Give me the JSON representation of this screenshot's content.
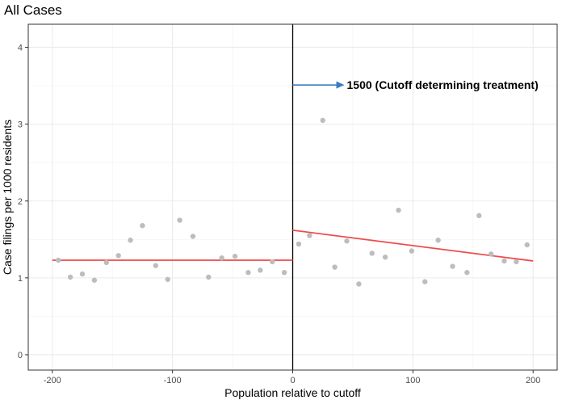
{
  "chart_data": {
    "type": "scatter",
    "title": "All Cases",
    "xlabel": "Population relative to cutoff",
    "ylabel": "Case filings per 1000 residents",
    "xlim": [
      -220,
      220
    ],
    "ylim": [
      -0.2,
      4.3
    ],
    "xticks": [
      -200,
      -100,
      0,
      100,
      200
    ],
    "yticks": [
      0,
      1,
      2,
      3,
      4
    ],
    "grid": true,
    "points": [
      {
        "x": -195,
        "y": 1.23
      },
      {
        "x": -185,
        "y": 1.01
      },
      {
        "x": -175,
        "y": 1.05
      },
      {
        "x": -165,
        "y": 0.97
      },
      {
        "x": -155,
        "y": 1.2
      },
      {
        "x": -145,
        "y": 1.29
      },
      {
        "x": -135,
        "y": 1.49
      },
      {
        "x": -125,
        "y": 1.68
      },
      {
        "x": -114,
        "y": 1.16
      },
      {
        "x": -104,
        "y": 0.98
      },
      {
        "x": -94,
        "y": 1.75
      },
      {
        "x": -83,
        "y": 1.54
      },
      {
        "x": -70,
        "y": 1.01
      },
      {
        "x": -59,
        "y": 1.26
      },
      {
        "x": -48,
        "y": 1.28
      },
      {
        "x": -37,
        "y": 1.07
      },
      {
        "x": -27,
        "y": 1.1
      },
      {
        "x": -17,
        "y": 1.21
      },
      {
        "x": -7,
        "y": 1.07
      },
      {
        "x": 5,
        "y": 1.44
      },
      {
        "x": 14,
        "y": 1.55
      },
      {
        "x": 25,
        "y": 3.05
      },
      {
        "x": 35,
        "y": 1.14
      },
      {
        "x": 45,
        "y": 1.48
      },
      {
        "x": 55,
        "y": 0.92
      },
      {
        "x": 66,
        "y": 1.32
      },
      {
        "x": 77,
        "y": 1.27
      },
      {
        "x": 88,
        "y": 1.88
      },
      {
        "x": 99,
        "y": 1.35
      },
      {
        "x": 110,
        "y": 0.95
      },
      {
        "x": 121,
        "y": 1.49
      },
      {
        "x": 133,
        "y": 1.15
      },
      {
        "x": 145,
        "y": 1.07
      },
      {
        "x": 155,
        "y": 1.81
      },
      {
        "x": 165,
        "y": 1.31
      },
      {
        "x": 176,
        "y": 1.22
      },
      {
        "x": 186,
        "y": 1.21
      },
      {
        "x": 195,
        "y": 1.43
      }
    ],
    "fit_lines": [
      {
        "x": [
          -200,
          0
        ],
        "y": [
          1.23,
          1.23
        ]
      },
      {
        "x": [
          0,
          200
        ],
        "y": [
          1.62,
          1.22
        ]
      }
    ],
    "cutoff_x": 0,
    "annotation": {
      "text": "1500 (Cutoff determining treatment)",
      "arrow_from": [
        0,
        3.51
      ],
      "arrow_to": [
        43,
        3.51
      ]
    },
    "colors": {
      "points": "#bdbdbd",
      "fit_line": "#f14a4a",
      "cutoff_line": "#000000",
      "arrow": "#3a7cc0",
      "grid": "#ebebeb",
      "panel_border": "#333333"
    }
  }
}
